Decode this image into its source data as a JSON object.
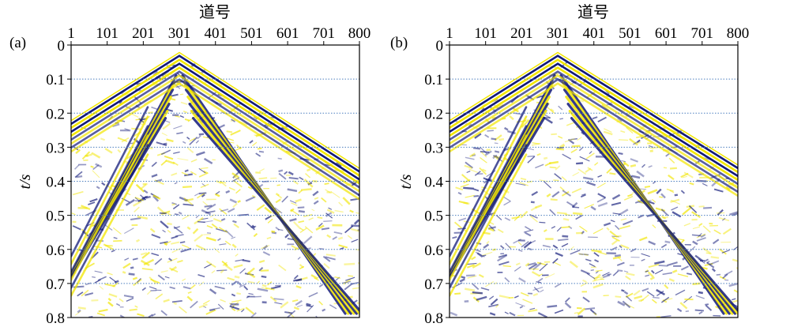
{
  "figure": {
    "panels": [
      {
        "id": "a",
        "label": "(a)",
        "x_title": "道号",
        "y_title": "t/s",
        "x_ticks": [
          "1",
          "101",
          "201",
          "301",
          "401",
          "501",
          "601",
          "701",
          "800"
        ],
        "y_ticks": [
          "0",
          "0.1",
          "0.2",
          "0.3",
          "0.4",
          "0.5",
          "0.6",
          "0.7",
          "0.8"
        ],
        "x_range": [
          1,
          800
        ],
        "y_range": [
          0,
          0.8
        ],
        "apex_trace": 301,
        "apex_time": 0.02,
        "left_edge_time": 0.22,
        "right_edge_time": 0.36,
        "colors": {
          "positive": "#f2e600",
          "negative": "#121a7a",
          "grid": "#4d7fbf",
          "frame": "#000000"
        }
      },
      {
        "id": "b",
        "label": "(b)",
        "x_title": "道号",
        "y_title": "t/s",
        "x_ticks": [
          "1",
          "101",
          "201",
          "301",
          "401",
          "501",
          "601",
          "701",
          "800"
        ],
        "y_ticks": [
          "0",
          "0.1",
          "0.2",
          "0.3",
          "0.4",
          "0.5",
          "0.6",
          "0.7",
          "0.8"
        ],
        "x_range": [
          1,
          800
        ],
        "y_range": [
          0,
          0.8
        ],
        "apex_trace": 301,
        "apex_time": 0.02,
        "left_edge_time": 0.22,
        "right_edge_time": 0.35,
        "colors": {
          "positive": "#f2e600",
          "negative": "#121a7a",
          "grid": "#4d7fbf",
          "frame": "#000000"
        }
      }
    ]
  }
}
